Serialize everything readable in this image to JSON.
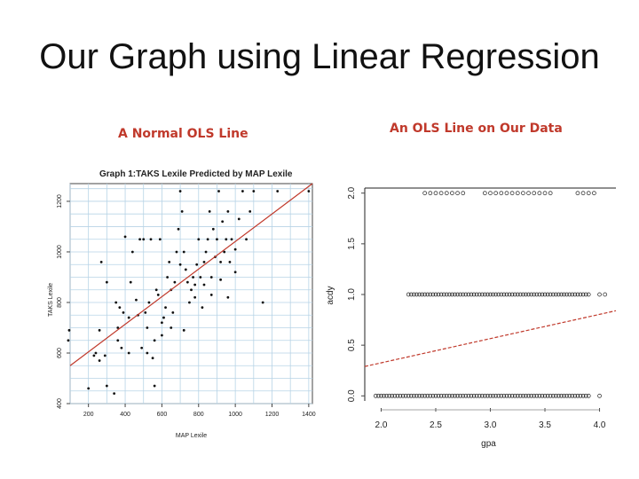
{
  "slide": {
    "title": "Our Graph using Linear Regression",
    "left_caption": "A Normal OLS Line",
    "right_caption": "An OLS Line on Our Data"
  },
  "colors": {
    "fit_line": "#c0392b",
    "caption": "#c0392b",
    "grid": "#b7d3e6"
  },
  "chart_data": [
    {
      "type": "scatter",
      "title": "Graph 1:TAKS Lexile Predicted by MAP Lexile",
      "xlabel": "MAP Lexile",
      "ylabel": "TAKS Lexile",
      "xlim": [
        100,
        1420
      ],
      "ylim": [
        400,
        1270
      ],
      "xticks": [
        200,
        400,
        600,
        800,
        1000,
        1200,
        1400
      ],
      "yticks": [
        400,
        600,
        800,
        1000,
        1200
      ],
      "grid": true,
      "fit_line": {
        "x": [
          100,
          1420
        ],
        "y": [
          550,
          1270
        ]
      },
      "points": [
        [
          90,
          650
        ],
        [
          95,
          690
        ],
        [
          200,
          460
        ],
        [
          230,
          590
        ],
        [
          240,
          600
        ],
        [
          260,
          690
        ],
        [
          270,
          960
        ],
        [
          290,
          590
        ],
        [
          300,
          880
        ],
        [
          340,
          440
        ],
        [
          350,
          800
        ],
        [
          360,
          650
        ],
        [
          360,
          700
        ],
        [
          370,
          780
        ],
        [
          380,
          620
        ],
        [
          390,
          760
        ],
        [
          400,
          1060
        ],
        [
          420,
          740
        ],
        [
          430,
          880
        ],
        [
          440,
          1000
        ],
        [
          460,
          810
        ],
        [
          470,
          750
        ],
        [
          480,
          1050
        ],
        [
          500,
          1050
        ],
        [
          510,
          760
        ],
        [
          520,
          700
        ],
        [
          530,
          800
        ],
        [
          540,
          1050
        ],
        [
          550,
          580
        ],
        [
          560,
          650
        ],
        [
          570,
          850
        ],
        [
          580,
          830
        ],
        [
          590,
          1050
        ],
        [
          600,
          670
        ],
        [
          610,
          740
        ],
        [
          620,
          780
        ],
        [
          630,
          900
        ],
        [
          640,
          960
        ],
        [
          650,
          850
        ],
        [
          660,
          760
        ],
        [
          670,
          880
        ],
        [
          680,
          1000
        ],
        [
          690,
          1090
        ],
        [
          700,
          950
        ],
        [
          700,
          1240
        ],
        [
          710,
          1160
        ],
        [
          720,
          1000
        ],
        [
          730,
          930
        ],
        [
          740,
          880
        ],
        [
          750,
          800
        ],
        [
          760,
          850
        ],
        [
          770,
          900
        ],
        [
          780,
          820
        ],
        [
          790,
          950
        ],
        [
          800,
          1050
        ],
        [
          810,
          900
        ],
        [
          820,
          780
        ],
        [
          830,
          960
        ],
        [
          840,
          1000
        ],
        [
          850,
          1050
        ],
        [
          860,
          1160
        ],
        [
          870,
          900
        ],
        [
          880,
          1090
        ],
        [
          890,
          980
        ],
        [
          900,
          1050
        ],
        [
          910,
          1240
        ],
        [
          920,
          960
        ],
        [
          930,
          1120
        ],
        [
          940,
          1000
        ],
        [
          950,
          1050
        ],
        [
          960,
          1160
        ],
        [
          970,
          960
        ],
        [
          980,
          1050
        ],
        [
          1000,
          1010
        ],
        [
          1020,
          1130
        ],
        [
          1040,
          1240
        ],
        [
          1060,
          1050
        ],
        [
          1080,
          1160
        ],
        [
          1100,
          1240
        ],
        [
          1150,
          800
        ],
        [
          1230,
          1240
        ],
        [
          1400,
          1240
        ],
        [
          560,
          470
        ],
        [
          520,
          600
        ],
        [
          490,
          620
        ],
        [
          600,
          720
        ],
        [
          650,
          700
        ],
        [
          720,
          690
        ],
        [
          780,
          870
        ],
        [
          830,
          870
        ],
        [
          870,
          830
        ],
        [
          920,
          890
        ],
        [
          960,
          820
        ],
        [
          1000,
          920
        ],
        [
          300,
          470
        ],
        [
          260,
          570
        ],
        [
          420,
          600
        ]
      ]
    },
    {
      "type": "scatter",
      "xlabel": "gpa",
      "ylabel": "acdy",
      "xlim": [
        1.85,
        4.15
      ],
      "ylim": [
        -0.05,
        2.05
      ],
      "xticks": [
        "2.0",
        "2.5",
        "3.0",
        "3.5",
        "4.0"
      ],
      "yticks": [
        "0.0",
        "0.5",
        "1.0",
        "1.5",
        "2.0"
      ],
      "grid": false,
      "fit_line": {
        "x": [
          1.85,
          4.15
        ],
        "y": [
          0.29,
          0.84
        ]
      },
      "series": [
        {
          "y": 0,
          "x_from": 1.95,
          "x_to": 3.9,
          "step": 0.025,
          "extra": [
            4.0
          ]
        },
        {
          "y": 1,
          "x_from": 2.25,
          "x_to": 3.92,
          "step": 0.025,
          "extra": [
            4.0,
            4.05
          ]
        },
        {
          "y": 2,
          "x_from": 2.4,
          "x_to": 3.95,
          "step": 0.05,
          "gaps": [
            [
              2.75,
              2.9
            ],
            [
              3.55,
              3.75
            ]
          ]
        }
      ]
    }
  ]
}
